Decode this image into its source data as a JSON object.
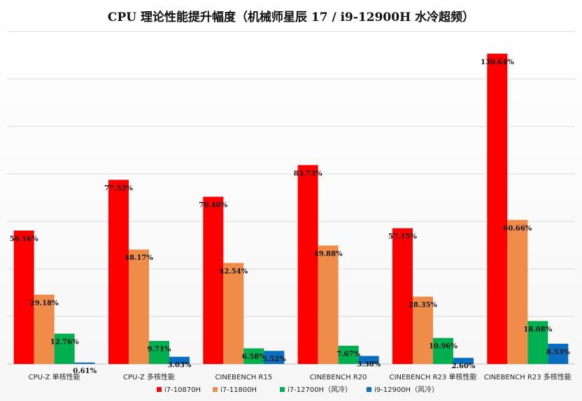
{
  "chart_data": {
    "type": "bar",
    "title": "CPU 理论性能提升幅度（机械师星辰 17 / i9-12900H 水冷超频）",
    "categories": [
      "CPU-Z 单核性能",
      "CPU-Z 多核性能",
      "CINEBENCH R15",
      "CINEBENCH R20",
      "CINEBENCH R23 单核性能",
      "CINEBENCH R23 多核性能"
    ],
    "series": [
      {
        "name": "i7-10870H",
        "color": "#ff0000",
        "values": [
          56.16,
          77.52,
          70.4,
          83.73,
          57.15,
          130.64
        ],
        "labels": [
          "56.16%",
          "77.52%",
          "70.40%",
          "83.73%",
          "57.15%",
          "130.64%"
        ]
      },
      {
        "name": "i7-11800H",
        "color": "#f08c4a",
        "values": [
          29.18,
          48.17,
          42.54,
          49.88,
          28.35,
          60.66
        ],
        "labels": [
          "29.18%",
          "48.17%",
          "42.54%",
          "49.88%",
          "28.35%",
          "60.66%"
        ]
      },
      {
        "name": "i7-12700H（风冷）",
        "color": "#00b050",
        "values": [
          12.76,
          9.71,
          6.58,
          7.67,
          10.96,
          18.08
        ],
        "labels": [
          "12.76%",
          "9.71%",
          "6.58%",
          "7.67%",
          "10.96%",
          "18.08%"
        ]
      },
      {
        "name": "i9-12900H（风冷）",
        "color": "#0a6ec0",
        "values": [
          0.61,
          3.03,
          5.52,
          3.38,
          2.6,
          8.53
        ],
        "labels": [
          "0.61%",
          "3.03%",
          "5.52%",
          "3.38%",
          "2.60%",
          "8.53%"
        ]
      }
    ],
    "ylim": [
      0,
      140
    ],
    "grid": true,
    "legend_position": "bottom"
  }
}
